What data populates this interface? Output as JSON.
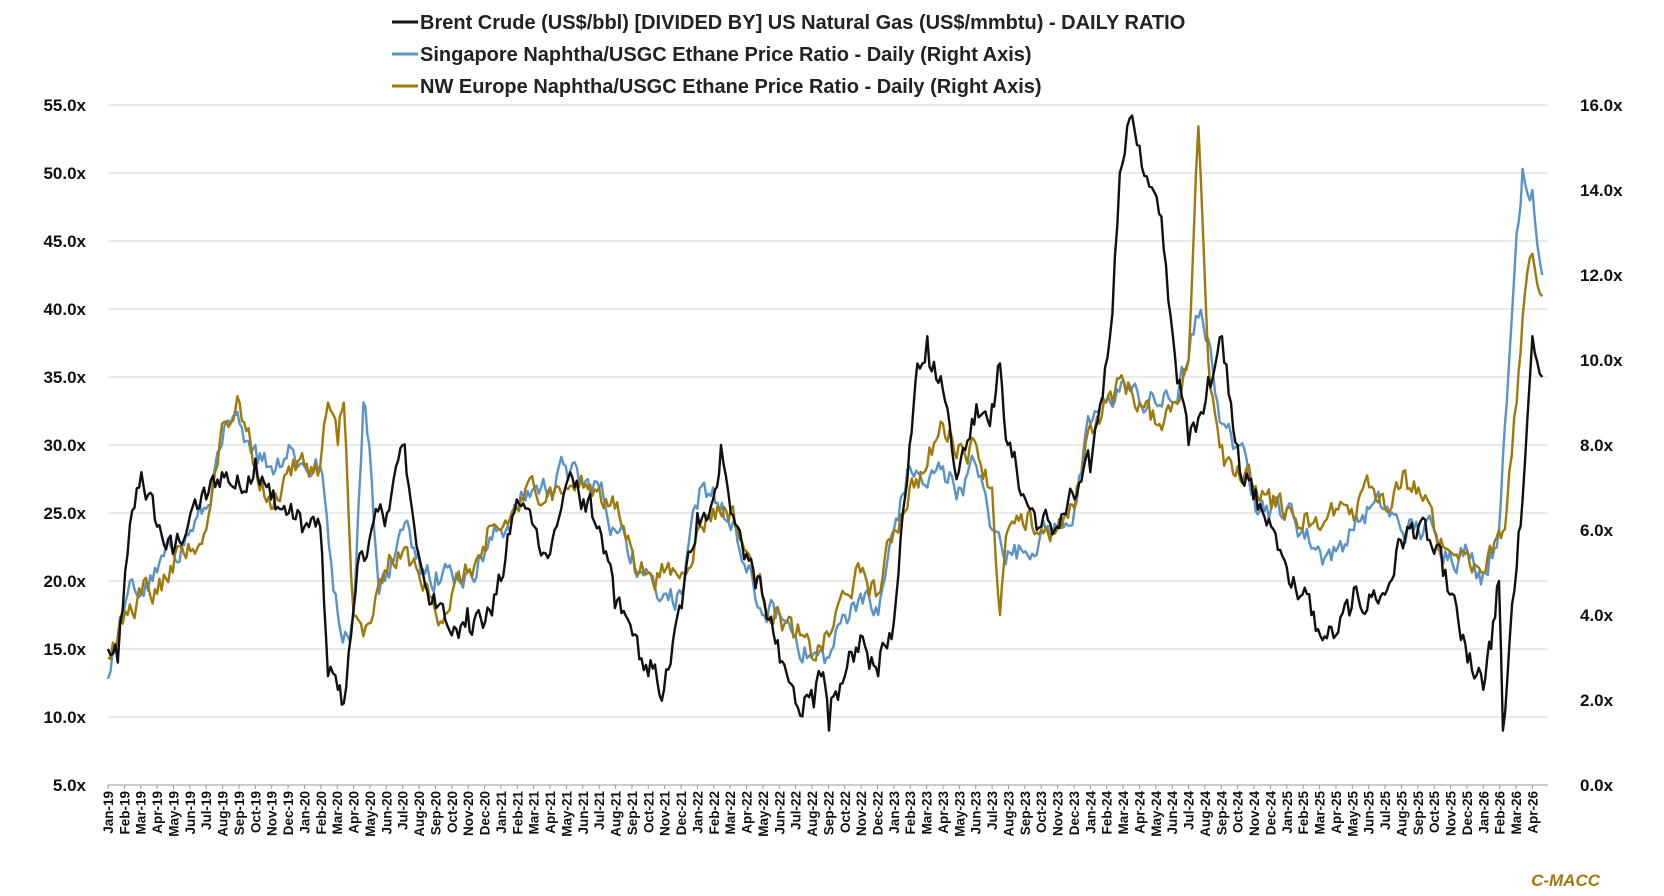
{
  "brand": {
    "text": "C-MACC",
    "color": "#9c7a0b"
  },
  "chart_data": {
    "type": "line",
    "title": "",
    "legend_position": "top-center",
    "grid": true,
    "x_range": [
      "2019-01-01",
      "2026-04-30"
    ],
    "x_tick_labels": [
      "Jan-19",
      "Feb-19",
      "Mar-19",
      "Apr-19",
      "May-19",
      "Jun-19",
      "Jul-19",
      "Aug-19",
      "Sep-19",
      "Oct-19",
      "Nov-19",
      "Dec-19",
      "Jan-20",
      "Feb-20",
      "Mar-20",
      "Apr-20",
      "May-20",
      "Jun-20",
      "Jul-20",
      "Aug-20",
      "Sep-20",
      "Oct-20",
      "Nov-20",
      "Dec-20",
      "Jan-21",
      "Feb-21",
      "Mar-21",
      "Apr-21",
      "May-21",
      "Jun-21",
      "Jul-21",
      "Aug-21",
      "Sep-21",
      "Oct-21",
      "Nov-21",
      "Dec-21",
      "Jan-22",
      "Feb-22",
      "Mar-22",
      "Apr-22",
      "May-22",
      "Jun-22",
      "Jul-22",
      "Aug-22",
      "Sep-22",
      "Oct-22",
      "Nov-22",
      "Dec-22",
      "Jan-23",
      "Feb-23",
      "Mar-23",
      "Apr-23",
      "May-23",
      "Jun-23",
      "Jul-23",
      "Aug-23",
      "Sep-23",
      "Oct-23",
      "Nov-23",
      "Dec-23",
      "Jan-24",
      "Feb-24",
      "Mar-24",
      "Apr-24",
      "May-24",
      "Jun-24",
      "Jul-24",
      "Aug-24",
      "Sep-24",
      "Oct-24",
      "Nov-24",
      "Dec-24",
      "Jan-25",
      "Feb-25",
      "Mar-25",
      "Apr-25",
      "May-25",
      "Jun-25",
      "Jul-25",
      "Aug-25",
      "Sep-25",
      "Oct-25",
      "Nov-25",
      "Dec-25",
      "Jan-26",
      "Feb-26",
      "Mar-26",
      "Apr-26"
    ],
    "y_left": {
      "range": [
        5,
        55
      ],
      "ticks": [
        "5.0x",
        "10.0x",
        "15.0x",
        "20.0x",
        "25.0x",
        "30.0x",
        "35.0x",
        "40.0x",
        "45.0x",
        "50.0x",
        "55.0x"
      ]
    },
    "y_right": {
      "range": [
        0,
        16
      ],
      "ticks": [
        "0.0x",
        "2.0x",
        "4.0x",
        "6.0x",
        "8.0x",
        "10.0x",
        "12.0x",
        "14.0x",
        "16.0x"
      ]
    },
    "series": [
      {
        "name": "Brent Crude (US$/bbl) [DIVIDED BY] US Natural Gas (US$/mmbtu) - DAILY RATIO",
        "axis": "left",
        "color": "#111111",
        "x": [
          2019.0,
          2019.05,
          2019.1,
          2019.17,
          2019.25,
          2019.33,
          2019.42,
          2019.5,
          2019.58,
          2019.67,
          2019.75,
          2019.83,
          2019.92,
          2020.0,
          2020.08,
          2020.12,
          2020.17,
          2020.2,
          2020.25,
          2020.28,
          2020.33,
          2020.42,
          2020.5,
          2020.54,
          2020.58,
          2020.67,
          2020.75,
          2020.83,
          2020.92,
          2021.0,
          2021.08,
          2021.17,
          2021.25,
          2021.33,
          2021.42,
          2021.5,
          2021.58,
          2021.67,
          2021.75,
          2021.83,
          2021.92,
          2022.0,
          2022.08,
          2022.12,
          2022.17,
          2022.25,
          2022.33,
          2022.42,
          2022.5,
          2022.58,
          2022.63,
          2022.67,
          2022.75,
          2022.83,
          2022.92,
          2023.0,
          2023.08,
          2023.12,
          2023.17,
          2023.25,
          2023.33,
          2023.42,
          2023.5,
          2023.54,
          2023.58,
          2023.67,
          2023.75,
          2023.83,
          2023.92,
          2024.0,
          2024.05,
          2024.1,
          2024.15,
          2024.2,
          2024.25,
          2024.3,
          2024.35,
          2024.42,
          2024.5,
          2024.55,
          2024.6,
          2024.67,
          2024.75,
          2024.83,
          2024.92,
          2025.0,
          2025.08,
          2025.17,
          2025.25,
          2025.33,
          2025.42,
          2025.5,
          2025.58,
          2025.67,
          2025.75,
          2025.83,
          2025.92,
          2026.0,
          2026.04,
          2026.08,
          2026.1,
          2026.17,
          2026.2,
          2026.25,
          2026.3
        ],
        "y": [
          15,
          14,
          22,
          28,
          24,
          22,
          25,
          26,
          28,
          27,
          29,
          26,
          25,
          24,
          24,
          13,
          12,
          11,
          18,
          22,
          23,
          25,
          30,
          26,
          22,
          18,
          16,
          18,
          17,
          20,
          26,
          24,
          22,
          27,
          26,
          24,
          18,
          16,
          13,
          12,
          18,
          25,
          26,
          30,
          25,
          22,
          19,
          14,
          11,
          12,
          13,
          9,
          13,
          16,
          13,
          17,
          30,
          36,
          38,
          34,
          28,
          33,
          33,
          36,
          30,
          26,
          24,
          24,
          26,
          28,
          33,
          38,
          50,
          54,
          52,
          49,
          47,
          38,
          30,
          32,
          35,
          38,
          30,
          26,
          24,
          21,
          19,
          16,
          16,
          18,
          19,
          19,
          23,
          24,
          22,
          19,
          14,
          12,
          15,
          20,
          9,
          21,
          26,
          38,
          35
        ]
      },
      {
        "name": "Singapore Naphtha/USGC Ethane Price Ratio - Daily (Right Axis)",
        "axis": "right",
        "color": "#5b93c7",
        "x": [
          2019.0,
          2019.05,
          2019.1,
          2019.17,
          2019.25,
          2019.33,
          2019.42,
          2019.5,
          2019.58,
          2019.67,
          2019.75,
          2019.83,
          2019.92,
          2020.0,
          2020.08,
          2020.17,
          2020.22,
          2020.25,
          2020.3,
          2020.33,
          2020.38,
          2020.42,
          2020.5,
          2020.58,
          2020.67,
          2020.75,
          2020.83,
          2020.92,
          2021.0,
          2021.08,
          2021.17,
          2021.25,
          2021.33,
          2021.42,
          2021.5,
          2021.58,
          2021.67,
          2021.75,
          2021.83,
          2021.92,
          2022.0,
          2022.08,
          2022.17,
          2022.25,
          2022.33,
          2022.42,
          2022.5,
          2022.58,
          2022.67,
          2022.75,
          2022.83,
          2022.92,
          2023.0,
          2023.08,
          2023.17,
          2023.25,
          2023.33,
          2023.42,
          2023.5,
          2023.58,
          2023.67,
          2023.75,
          2023.83,
          2023.92,
          2024.0,
          2024.08,
          2024.17,
          2024.25,
          2024.33,
          2024.42,
          2024.5,
          2024.55,
          2024.6,
          2024.67,
          2024.75,
          2024.83,
          2024.92,
          2025.0,
          2025.08,
          2025.17,
          2025.25,
          2025.33,
          2025.42,
          2025.5,
          2025.58,
          2025.67,
          2025.75,
          2025.83,
          2025.92,
          2026.0,
          2026.08,
          2026.12,
          2026.17,
          2026.2,
          2026.25,
          2026.3
        ],
        "y": [
          2.5,
          3.5,
          4.5,
          4.5,
          5,
          5.5,
          6,
          6.5,
          8,
          8.5,
          8,
          7.5,
          8,
          7.5,
          7.5,
          4,
          3.5,
          4,
          9,
          8,
          4.5,
          5,
          6,
          5.5,
          5,
          5,
          5,
          5.5,
          6,
          6.5,
          7,
          7,
          7.5,
          7,
          7,
          6,
          5.5,
          5,
          4.5,
          4.5,
          6.5,
          7,
          6,
          5,
          4,
          4,
          3.5,
          3,
          3,
          4,
          4.5,
          4,
          6,
          7.5,
          7,
          7.5,
          7,
          7.5,
          6,
          5.5,
          5.5,
          6,
          6,
          6.5,
          8.5,
          9,
          9.5,
          9,
          9,
          9,
          10,
          11,
          10.5,
          8.5,
          8,
          7,
          6.5,
          6.5,
          6,
          5.5,
          5.5,
          6,
          6.5,
          6.5,
          6,
          6,
          6,
          5.5,
          5.5,
          5,
          6,
          9,
          13,
          14.5,
          14,
          12
        ]
      },
      {
        "name": "NW Europe Naphtha/USGC Ethane Price Ratio - Daily (Right Axis)",
        "axis": "right",
        "color": "#9c7a0b",
        "x": [
          2019.0,
          2019.05,
          2019.1,
          2019.17,
          2019.25,
          2019.33,
          2019.42,
          2019.5,
          2019.58,
          2019.67,
          2019.75,
          2019.83,
          2019.92,
          2020.0,
          2020.08,
          2020.12,
          2020.17,
          2020.2,
          2020.25,
          2020.3,
          2020.35,
          2020.42,
          2020.5,
          2020.58,
          2020.67,
          2020.75,
          2020.83,
          2020.92,
          2021.0,
          2021.08,
          2021.17,
          2021.25,
          2021.33,
          2021.42,
          2021.5,
          2021.58,
          2021.67,
          2021.75,
          2021.83,
          2021.92,
          2022.0,
          2022.08,
          2022.17,
          2022.25,
          2022.33,
          2022.42,
          2022.5,
          2022.58,
          2022.67,
          2022.75,
          2022.83,
          2022.92,
          2023.0,
          2023.08,
          2023.17,
          2023.25,
          2023.33,
          2023.42,
          2023.5,
          2023.54,
          2023.58,
          2023.67,
          2023.75,
          2023.83,
          2023.92,
          2024.0,
          2024.08,
          2024.17,
          2024.25,
          2024.33,
          2024.42,
          2024.5,
          2024.55,
          2024.6,
          2024.67,
          2024.75,
          2024.83,
          2024.92,
          2025.0,
          2025.08,
          2025.17,
          2025.25,
          2025.33,
          2025.42,
          2025.5,
          2025.58,
          2025.67,
          2025.75,
          2025.83,
          2025.92,
          2026.0,
          2026.08,
          2026.12,
          2026.17,
          2026.2,
          2026.25,
          2026.3
        ],
        "y": [
          3,
          3.5,
          4,
          4.5,
          4.5,
          5,
          5.5,
          6,
          8.5,
          9,
          7.5,
          6.5,
          7.5,
          7.5,
          7.5,
          9,
          8,
          9,
          4,
          3.5,
          4,
          5,
          5.5,
          5,
          4,
          4.5,
          5,
          5.5,
          6,
          6.5,
          7,
          7,
          7,
          7,
          7,
          6.5,
          5.5,
          5,
          5,
          5,
          6,
          6.5,
          6.5,
          5.5,
          4.5,
          4,
          3.5,
          3,
          3.5,
          4.5,
          5,
          4.5,
          6,
          7,
          7.5,
          8.5,
          8,
          8,
          7,
          4,
          6,
          6,
          6,
          6,
          6.5,
          8.5,
          9,
          9.5,
          9,
          8.5,
          9,
          10,
          15.5,
          10,
          8,
          7.5,
          7,
          6.5,
          6.5,
          6,
          6,
          6.5,
          6.5,
          7,
          6.5,
          7,
          7,
          6,
          5.5,
          5.5,
          5,
          6,
          6.5,
          9,
          11,
          12.5,
          11.5
        ]
      }
    ]
  }
}
